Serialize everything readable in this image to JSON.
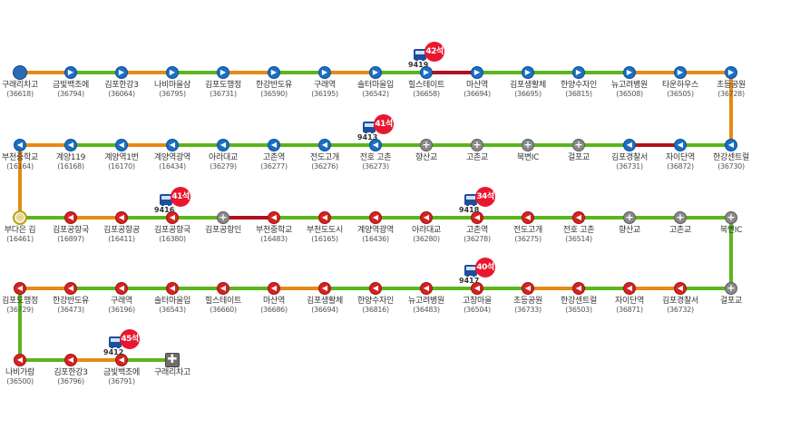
{
  "colors": {
    "green": "#5bb51b",
    "orange": "#e48a16",
    "red": "#b01020",
    "blue": "#1b6fc4",
    "backRed": "#d42323"
  },
  "stops": [
    {
      "name": "구래리차고",
      "code": "(36618)",
      "type": "start"
    },
    {
      "name": "금빛백조에",
      "code": "(36794)",
      "type": "fwd"
    },
    {
      "name": "김포한강3",
      "code": "(36064)",
      "type": "fwd"
    },
    {
      "name": "나비마을삼",
      "code": "(36795)",
      "type": "fwd"
    },
    {
      "name": "김포도행정",
      "code": "(36731)",
      "type": "fwd"
    },
    {
      "name": "한강반도유",
      "code": "(36590)",
      "type": "fwd"
    },
    {
      "name": "구래역",
      "code": "(36195)",
      "type": "fwd"
    },
    {
      "name": "솔터마을입",
      "code": "(36542)",
      "type": "fwd"
    },
    {
      "name": "힐스테이트",
      "code": "(36658)",
      "type": "fwd"
    },
    {
      "name": "마산역",
      "code": "(36694)",
      "type": "fwd"
    },
    {
      "name": "김포생활체",
      "code": "(36695)",
      "type": "fwd"
    },
    {
      "name": "한양수자인",
      "code": "(36815)",
      "type": "fwd"
    },
    {
      "name": "뉴고려병원",
      "code": "(36508)",
      "type": "fwd"
    },
    {
      "name": "타운하우스",
      "code": "(36505)",
      "type": "fwd"
    },
    {
      "name": "초등공원",
      "code": "(36728)",
      "type": "fwd"
    },
    {
      "name": "한강센트럴",
      "code": "(36730)",
      "type": "fwd"
    },
    {
      "name": "자이단역",
      "code": "(36872)",
      "type": "fwd"
    },
    {
      "name": "김포경찰서",
      "code": "(36731)",
      "type": "fwd"
    },
    {
      "name": "걸포교",
      "code": "",
      "type": "cross"
    },
    {
      "name": "북변IC",
      "code": "",
      "type": "cross"
    },
    {
      "name": "고촌교",
      "code": "",
      "type": "cross"
    },
    {
      "name": "향산교",
      "code": "",
      "type": "cross"
    },
    {
      "name": "전호 고촌",
      "code": "(36273)",
      "type": "fwd"
    },
    {
      "name": "전도고개",
      "code": "(36276)",
      "type": "fwd"
    },
    {
      "name": "고촌역",
      "code": "(36277)",
      "type": "fwd"
    },
    {
      "name": "아라대교",
      "code": "(36279)",
      "type": "fwd"
    },
    {
      "name": "계양역광역",
      "code": "(16434)",
      "type": "fwd"
    },
    {
      "name": "계양역1번",
      "code": "(16170)",
      "type": "fwd"
    },
    {
      "name": "계양119",
      "code": "(16168)",
      "type": "fwd"
    },
    {
      "name": "부천중학교",
      "code": "(16164)",
      "type": "fwd"
    },
    {
      "name": "부다은 김",
      "code": "(16461)",
      "type": "turn"
    },
    {
      "name": "김포공항국",
      "code": "(16897)",
      "type": "back"
    },
    {
      "name": "김포공항공",
      "code": "(16411)",
      "type": "back"
    },
    {
      "name": "김포공항국",
      "code": "(16380)",
      "type": "back"
    },
    {
      "name": "김포공항인",
      "code": "",
      "type": "cross"
    },
    {
      "name": "부천중학교",
      "code": "(16483)",
      "type": "back"
    },
    {
      "name": "부천도도시",
      "code": "(16165)",
      "type": "back"
    },
    {
      "name": "계양역광역",
      "code": "(16436)",
      "type": "back"
    },
    {
      "name": "아라대교",
      "code": "(36280)",
      "type": "back"
    },
    {
      "name": "고촌역",
      "code": "(36278)",
      "type": "back"
    },
    {
      "name": "전도고개",
      "code": "(36275)",
      "type": "back"
    },
    {
      "name": "전호 고촌",
      "code": "(36514)",
      "type": "back"
    },
    {
      "name": "향산교",
      "code": "",
      "type": "cross"
    },
    {
      "name": "고촌교",
      "code": "",
      "type": "cross"
    },
    {
      "name": "북변IC",
      "code": "",
      "type": "cross"
    },
    {
      "name": "걸포교",
      "code": "",
      "type": "cross"
    },
    {
      "name": "김포경찰서",
      "code": "(36732)",
      "type": "back"
    },
    {
      "name": "자이단역",
      "code": "(36871)",
      "type": "back"
    },
    {
      "name": "한강센트럴",
      "code": "(36503)",
      "type": "back"
    },
    {
      "name": "초등공원",
      "code": "(36733)",
      "type": "back"
    },
    {
      "name": "고창마을",
      "code": "(36504)",
      "type": "back"
    },
    {
      "name": "뉴고려병원",
      "code": "(36483)",
      "type": "back"
    },
    {
      "name": "한양수자인",
      "code": "(36816)",
      "type": "back"
    },
    {
      "name": "김포생활체",
      "code": "(36694)",
      "type": "back"
    },
    {
      "name": "마산역",
      "code": "(36686)",
      "type": "back"
    },
    {
      "name": "힐스테이트",
      "code": "(36660)",
      "type": "back"
    },
    {
      "name": "솔터마을입",
      "code": "(36543)",
      "type": "back"
    },
    {
      "name": "구래역",
      "code": "(36196)",
      "type": "back"
    },
    {
      "name": "한강반도유",
      "code": "(36473)",
      "type": "back"
    },
    {
      "name": "김포도행정",
      "code": "(36729)",
      "type": "back"
    },
    {
      "name": "나비가람",
      "code": "(36500)",
      "type": "back"
    },
    {
      "name": "김포한강3",
      "code": "(36796)",
      "type": "back"
    },
    {
      "name": "금빛백조에",
      "code": "(36791)",
      "type": "back"
    },
    {
      "name": "구래리차고",
      "code": "",
      "type": "end"
    }
  ],
  "segment_colors": [
    "orange",
    "green",
    "orange",
    "green",
    "orange",
    "green",
    "orange",
    "green",
    "red",
    "green",
    "green",
    "green",
    "orange",
    "orange",
    "orange",
    "green",
    "red",
    "green",
    "green",
    "green",
    "green",
    "green",
    "green",
    "green",
    "green",
    "green",
    "orange",
    "green",
    "orange",
    "orange",
    "green",
    "orange",
    "green",
    "green",
    "red",
    "green",
    "green",
    "green",
    "green",
    "green",
    "green",
    "green",
    "green",
    "green",
    "green",
    "green",
    "orange",
    "green",
    "orange",
    "green",
    "green",
    "green",
    "green",
    "orange",
    "green",
    "green",
    "green",
    "green",
    "orange",
    "green",
    "green",
    "orange",
    "green"
  ],
  "buses": [
    {
      "plate": "9419",
      "crowd": "42석",
      "stop_index": 8
    },
    {
      "plate": "9413",
      "crowd": "41석",
      "stop_index": 22
    },
    {
      "plate": "9416",
      "crowd": "41석",
      "stop_index": 33
    },
    {
      "plate": "9418",
      "crowd": "34석",
      "stop_index": 39
    },
    {
      "plate": "9417",
      "crowd": "40석",
      "stop_index": 50
    },
    {
      "plate": "9412",
      "crowd": "45석",
      "stop_index": 62
    }
  ]
}
